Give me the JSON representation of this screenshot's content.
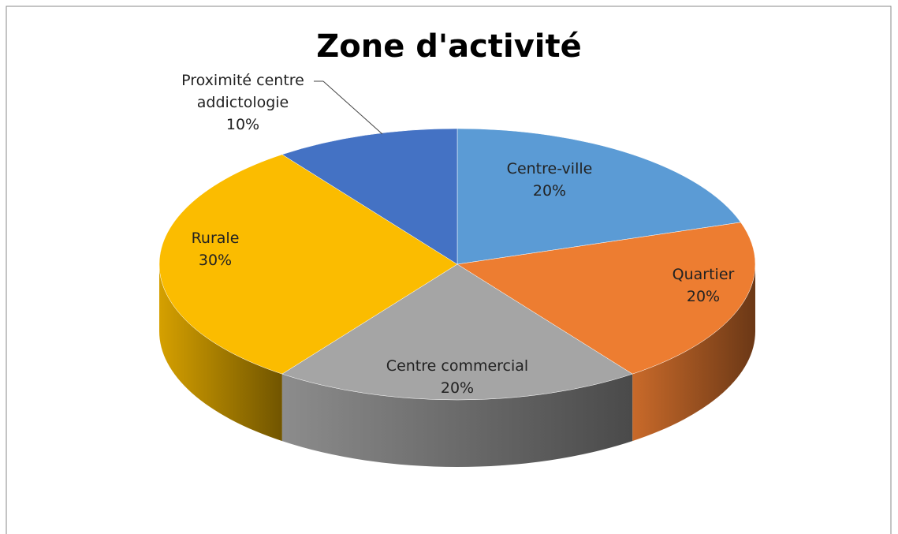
{
  "chart_data": {
    "type": "pie",
    "title": "Zone d'activité",
    "categories": [
      "Centre-ville",
      "Quartier",
      "Centre commercial",
      "Rurale",
      "Proximité centre addictologie"
    ],
    "values": [
      20,
      20,
      20,
      30,
      10
    ],
    "value_labels": [
      "20%",
      "20%",
      "20%",
      "30%",
      "10%"
    ],
    "colors": [
      "#5b9bd5",
      "#ed7d31",
      "#a5a5a5",
      "#fbbc00",
      "#4472c4"
    ]
  }
}
